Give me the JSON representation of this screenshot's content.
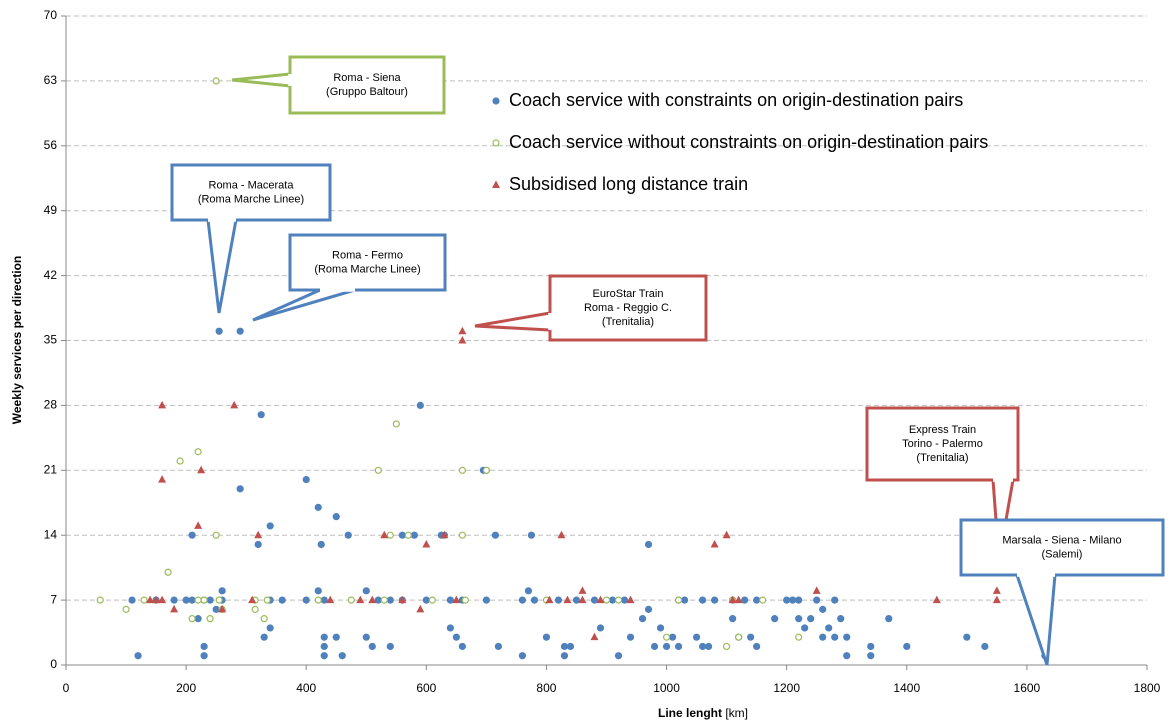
{
  "chart_data": {
    "type": "scatter",
    "x_label": "Line lenght",
    "x_unit": "[km]",
    "y_label": "Weekly services per direction",
    "xlim": [
      0,
      1800
    ],
    "xticks": [
      0,
      200,
      400,
      600,
      800,
      1000,
      1200,
      1400,
      1600,
      1800
    ],
    "ylim": [
      0,
      70
    ],
    "yticks": [
      0,
      7,
      14,
      21,
      28,
      35,
      42,
      49,
      56,
      63,
      70
    ],
    "grid": true,
    "series": [
      {
        "name": "Coach service with constraints on origin-destination pairs",
        "color": "#4f81bd",
        "marker": "filled-circle",
        "x": [
          255,
          290,
          325,
          590,
          290,
          400,
          420,
          450,
          425,
          320,
          340,
          210,
          470,
          560,
          580,
          625,
          630,
          715,
          775,
          970,
          695,
          700,
          110,
          150,
          180,
          200,
          210,
          230,
          240,
          260,
          260,
          340,
          360,
          400,
          420,
          430,
          500,
          520,
          540,
          560,
          600,
          640,
          660,
          700,
          760,
          770,
          780,
          820,
          850,
          880,
          910,
          930,
          1020,
          1030,
          1060,
          1080,
          1110,
          1130,
          1150,
          1200,
          1210,
          1220,
          1250,
          1280,
          120,
          220,
          230,
          230,
          250,
          330,
          340,
          430,
          430,
          430,
          450,
          460,
          500,
          510,
          540,
          640,
          650,
          660,
          720,
          760,
          800,
          830,
          830,
          840,
          890,
          920,
          940,
          960,
          970,
          980,
          990,
          1000,
          1010,
          1020,
          1050,
          1060,
          1070,
          1110,
          1120,
          1140,
          1150,
          1180,
          1220,
          1230,
          1240,
          1260,
          1260,
          1270,
          1280,
          1290,
          1300,
          1300,
          1340,
          1340,
          1370,
          1400,
          1500,
          1530,
          1630
        ],
        "values": [
          36,
          36,
          27,
          28,
          19,
          20,
          17,
          16,
          13,
          13,
          15,
          14,
          14,
          14,
          14,
          14,
          14,
          14,
          14,
          13,
          21,
          21,
          7,
          7,
          7,
          7,
          7,
          7,
          7,
          8,
          7,
          7,
          7,
          7,
          8,
          7,
          8,
          7,
          7,
          7,
          7,
          7,
          7,
          7,
          7,
          8,
          7,
          7,
          7,
          7,
          7,
          7,
          7,
          7,
          7,
          7,
          7,
          7,
          7,
          7,
          7,
          7,
          7,
          7,
          1,
          5,
          2,
          1,
          6,
          3,
          4,
          3,
          2,
          1,
          3,
          1,
          3,
          2,
          2,
          4,
          3,
          2,
          2,
          1,
          3,
          2,
          1,
          2,
          4,
          1,
          3,
          5,
          6,
          2,
          4,
          2,
          3,
          2,
          3,
          2,
          2,
          5,
          3,
          3,
          2,
          5,
          5,
          4,
          5,
          6,
          3,
          4,
          3,
          5,
          3,
          1,
          1,
          2,
          5,
          2,
          3,
          2,
          1
        ]
      },
      {
        "name": "Coach service without constraints on origin-destination pairs",
        "color": "#9bbb59",
        "marker": "hollow-circle",
        "x": [
          250,
          57,
          100,
          130,
          170,
          190,
          220,
          210,
          220,
          240,
          250,
          255,
          315,
          315,
          330,
          335,
          420,
          475,
          520,
          550,
          530,
          540,
          570,
          610,
          660,
          660,
          665,
          700,
          800,
          900,
          920,
          1000,
          1020,
          1100,
          1110,
          1120,
          1160,
          1220,
          230,
          260
        ],
        "values": [
          63,
          7,
          6,
          7,
          10,
          22,
          23,
          5,
          7,
          5,
          14,
          7,
          7,
          6,
          5,
          7,
          7,
          7,
          21,
          26,
          7,
          14,
          14,
          7,
          21,
          14,
          7,
          21,
          7,
          7,
          7,
          3,
          7,
          2,
          7,
          3,
          7,
          3,
          7,
          6
        ]
      },
      {
        "name": "Subsidised long distance train",
        "color": "#c0504d",
        "marker": "triangle",
        "x": [
          160,
          160,
          280,
          220,
          225,
          320,
          140,
          150,
          160,
          180,
          260,
          310,
          440,
          490,
          510,
          530,
          560,
          590,
          600,
          630,
          650,
          660,
          660,
          805,
          825,
          835,
          860,
          860,
          880,
          890,
          940,
          1080,
          1100,
          1110,
          1120,
          1250,
          1450,
          1550,
          1550
        ],
        "values": [
          28,
          20,
          28,
          15,
          21,
          14,
          7,
          7,
          7,
          6,
          6,
          7,
          7,
          7,
          7,
          14,
          7,
          6,
          13,
          14,
          7,
          36,
          35,
          7,
          14,
          7,
          8,
          7,
          3,
          7,
          7,
          13,
          14,
          7,
          7,
          8,
          7,
          7,
          8
        ]
      }
    ],
    "annotations": [
      {
        "lines": [
          "Roma - Siena",
          "(Gruppo Baltour)"
        ],
        "color": "#9bbb59"
      },
      {
        "lines": [
          "Roma - Macerata",
          "(Roma Marche Linee)"
        ],
        "color": "#4f81bd"
      },
      {
        "lines": [
          "Roma - Fermo",
          "(Roma Marche Linee)"
        ],
        "color": "#4f81bd"
      },
      {
        "lines": [
          "EuroStar Train",
          "Roma - Reggio C.",
          "(Trenitalia)"
        ],
        "color": "#c0504d"
      },
      {
        "lines": [
          "Express Train",
          "Torino - Palermo",
          "(Trenitalia)"
        ],
        "color": "#c0504d"
      },
      {
        "lines": [
          "Marsala - Siena - Milano",
          "(Salemi)"
        ],
        "color": "#4f81bd"
      }
    ]
  }
}
